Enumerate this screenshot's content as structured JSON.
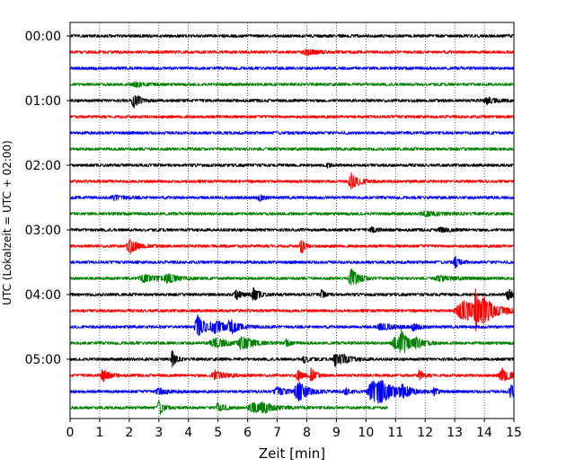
{
  "chart_data": {
    "type": "line",
    "title": "",
    "xlabel": "Zeit  [min]",
    "ylabel": "UTC (Lokalzeit = UTC + 02:00)",
    "xlim": [
      0,
      15
    ],
    "x_ticks": [
      "0",
      "1",
      "2",
      "3",
      "4",
      "5",
      "6",
      "7",
      "8",
      "9",
      "10",
      "11",
      "12",
      "13",
      "14",
      "15"
    ],
    "y_tick_labels": [
      "00:00",
      "01:00",
      "02:00",
      "03:00",
      "04:00",
      "05:00"
    ],
    "grid": "vertical dotted",
    "trace_colors": [
      "#000000",
      "#ff0000",
      "#0000ff",
      "#008000"
    ],
    "row_interval_minutes": 15,
    "rows": [
      {
        "start": "00:00",
        "color": "#000000",
        "end_minute": 15,
        "events": []
      },
      {
        "start": "00:15",
        "color": "#ff0000",
        "end_minute": 15,
        "events": [
          {
            "t": 8.0,
            "amp": 0.3,
            "dur": 0.6
          }
        ]
      },
      {
        "start": "00:30",
        "color": "#0000ff",
        "end_minute": 15,
        "events": []
      },
      {
        "start": "00:45",
        "color": "#008000",
        "end_minute": 15,
        "events": [
          {
            "t": 2.2,
            "amp": 0.3,
            "dur": 0.5
          }
        ]
      },
      {
        "start": "01:00",
        "color": "#000000",
        "end_minute": 15,
        "events": [
          {
            "t": 2.15,
            "amp": 0.9,
            "dur": 0.3
          },
          {
            "t": 14.1,
            "amp": 0.35,
            "dur": 0.5
          }
        ]
      },
      {
        "start": "01:15",
        "color": "#ff0000",
        "end_minute": 15,
        "events": []
      },
      {
        "start": "01:30",
        "color": "#0000ff",
        "end_minute": 15,
        "events": []
      },
      {
        "start": "01:45",
        "color": "#008000",
        "end_minute": 15,
        "events": []
      },
      {
        "start": "02:00",
        "color": "#000000",
        "end_minute": 15,
        "events": [
          {
            "t": 8.7,
            "amp": 0.25,
            "dur": 0.2
          }
        ]
      },
      {
        "start": "02:15",
        "color": "#ff0000",
        "end_minute": 15,
        "events": [
          {
            "t": 9.5,
            "amp": 1.0,
            "dur": 0.4
          }
        ]
      },
      {
        "start": "02:30",
        "color": "#0000ff",
        "end_minute": 15,
        "events": [
          {
            "t": 6.4,
            "amp": 0.4,
            "dur": 0.2
          },
          {
            "t": 1.5,
            "amp": 0.25,
            "dur": 0.5
          }
        ]
      },
      {
        "start": "02:45",
        "color": "#008000",
        "end_minute": 15,
        "events": [
          {
            "t": 12.0,
            "amp": 0.25,
            "dur": 0.8
          }
        ]
      },
      {
        "start": "03:00",
        "color": "#000000",
        "end_minute": 15,
        "events": [
          {
            "t": 10.2,
            "amp": 0.3,
            "dur": 0.3
          },
          {
            "t": 12.5,
            "amp": 0.25,
            "dur": 0.5
          }
        ]
      },
      {
        "start": "03:15",
        "color": "#ff0000",
        "end_minute": 15,
        "events": [
          {
            "t": 2.0,
            "amp": 0.9,
            "dur": 0.4
          },
          {
            "t": 7.8,
            "amp": 1.3,
            "dur": 0.15
          }
        ]
      },
      {
        "start": "03:30",
        "color": "#0000ff",
        "end_minute": 15,
        "events": [
          {
            "t": 13.0,
            "amp": 0.8,
            "dur": 0.2
          }
        ]
      },
      {
        "start": "03:45",
        "color": "#008000",
        "end_minute": 15,
        "events": [
          {
            "t": 2.5,
            "amp": 0.4,
            "dur": 0.8
          },
          {
            "t": 3.3,
            "amp": 0.5,
            "dur": 0.5
          },
          {
            "t": 9.5,
            "amp": 1.1,
            "dur": 0.4
          },
          {
            "t": 12.5,
            "amp": 0.25,
            "dur": 0.8
          }
        ]
      },
      {
        "start": "04:00",
        "color": "#000000",
        "end_minute": 15,
        "events": [
          {
            "t": 5.6,
            "amp": 0.6,
            "dur": 0.3
          },
          {
            "t": 6.2,
            "amp": 0.8,
            "dur": 0.3
          },
          {
            "t": 8.5,
            "amp": 0.5,
            "dur": 0.2
          },
          {
            "t": 14.8,
            "amp": 0.7,
            "dur": 0.3
          }
        ]
      },
      {
        "start": "04:15",
        "color": "#ff0000",
        "end_minute": 15,
        "events": [
          {
            "t": 13.3,
            "amp": 1.2,
            "dur": 1.2
          },
          {
            "t": 13.7,
            "amp": 2.0,
            "dur": 0.2
          },
          {
            "t": 14.0,
            "amp": 1.2,
            "dur": 0.5
          }
        ]
      },
      {
        "start": "04:30",
        "color": "#0000ff",
        "end_minute": 15,
        "events": [
          {
            "t": 4.3,
            "amp": 1.4,
            "dur": 0.4
          },
          {
            "t": 4.9,
            "amp": 0.6,
            "dur": 0.8
          },
          {
            "t": 5.4,
            "amp": 0.8,
            "dur": 0.3
          },
          {
            "t": 10.5,
            "amp": 0.4,
            "dur": 0.6
          },
          {
            "t": 11.6,
            "amp": 0.4,
            "dur": 0.3
          }
        ]
      },
      {
        "start": "04:45",
        "color": "#008000",
        "end_minute": 15,
        "events": [
          {
            "t": 4.9,
            "amp": 0.5,
            "dur": 0.8
          },
          {
            "t": 5.8,
            "amp": 0.9,
            "dur": 0.5
          },
          {
            "t": 7.3,
            "amp": 0.4,
            "dur": 0.2
          },
          {
            "t": 11.0,
            "amp": 0.8,
            "dur": 0.6
          },
          {
            "t": 11.2,
            "amp": 1.3,
            "dur": 0.3
          },
          {
            "t": 11.7,
            "amp": 0.5,
            "dur": 0.4
          }
        ]
      },
      {
        "start": "05:00",
        "color": "#000000",
        "end_minute": 15,
        "events": [
          {
            "t": 3.45,
            "amp": 1.0,
            "dur": 0.2
          },
          {
            "t": 7.9,
            "amp": 0.4,
            "dur": 0.3
          },
          {
            "t": 8.95,
            "amp": 1.0,
            "dur": 0.2
          },
          {
            "t": 9.2,
            "amp": 0.5,
            "dur": 0.5
          }
        ]
      },
      {
        "start": "05:15",
        "color": "#ff0000",
        "end_minute": 15,
        "events": [
          {
            "t": 1.1,
            "amp": 0.8,
            "dur": 0.3
          },
          {
            "t": 4.9,
            "amp": 0.5,
            "dur": 0.6
          },
          {
            "t": 7.7,
            "amp": 0.6,
            "dur": 0.3
          },
          {
            "t": 8.15,
            "amp": 0.9,
            "dur": 0.2
          },
          {
            "t": 11.8,
            "amp": 0.6,
            "dur": 0.2
          },
          {
            "t": 14.6,
            "amp": 0.8,
            "dur": 0.5
          }
        ]
      },
      {
        "start": "05:30",
        "color": "#0000ff",
        "end_minute": 15,
        "events": [
          {
            "t": 3.0,
            "amp": 0.4,
            "dur": 0.5
          },
          {
            "t": 7.0,
            "amp": 0.5,
            "dur": 0.5
          },
          {
            "t": 7.7,
            "amp": 1.2,
            "dur": 0.5
          },
          {
            "t": 9.3,
            "amp": 0.5,
            "dur": 0.2
          },
          {
            "t": 10.2,
            "amp": 1.4,
            "dur": 0.6
          },
          {
            "t": 10.5,
            "amp": 0.9,
            "dur": 0.7
          },
          {
            "t": 11.2,
            "amp": 0.7,
            "dur": 0.4
          },
          {
            "t": 12.3,
            "amp": 0.5,
            "dur": 0.2
          },
          {
            "t": 14.9,
            "amp": 0.8,
            "dur": 0.3
          }
        ]
      },
      {
        "start": "05:45",
        "color": "#008000",
        "end_minute": 10.75,
        "events": [
          {
            "t": 3.0,
            "amp": 1.0,
            "dur": 0.2
          },
          {
            "t": 5.0,
            "amp": 0.6,
            "dur": 0.3
          },
          {
            "t": 6.2,
            "amp": 0.6,
            "dur": 0.8
          },
          {
            "t": 6.5,
            "amp": 0.5,
            "dur": 0.3
          }
        ]
      }
    ]
  }
}
